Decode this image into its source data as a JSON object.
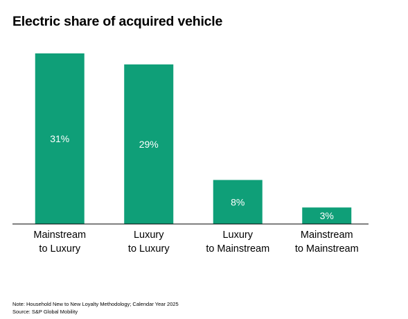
{
  "title": "Electric share of acquired vehicle",
  "notes": {
    "note": "Note: Household New to New Loyalty Methodology; Calendar Year 2025",
    "source": "Source: S&P Global Mobility"
  },
  "colors": {
    "bar": "#0f9f78",
    "bar_label": "#ffffff",
    "axis": "#000000",
    "text": "#000000"
  },
  "chart_data": {
    "type": "bar",
    "categories": [
      [
        "Mainstream",
        "to Luxury"
      ],
      [
        "Luxury",
        "to Luxury"
      ],
      [
        "Luxury",
        "to Mainstream"
      ],
      [
        "Mainstream",
        "to Mainstream"
      ]
    ],
    "values": [
      31,
      29,
      8,
      3
    ],
    "data_labels": [
      "31%",
      "29%",
      "8%",
      "3%"
    ],
    "unit": "%",
    "title": "Electric share of acquired vehicle",
    "xlabel": "",
    "ylabel": "",
    "ylim": [
      0,
      31
    ],
    "grid": false,
    "legend": "none"
  }
}
